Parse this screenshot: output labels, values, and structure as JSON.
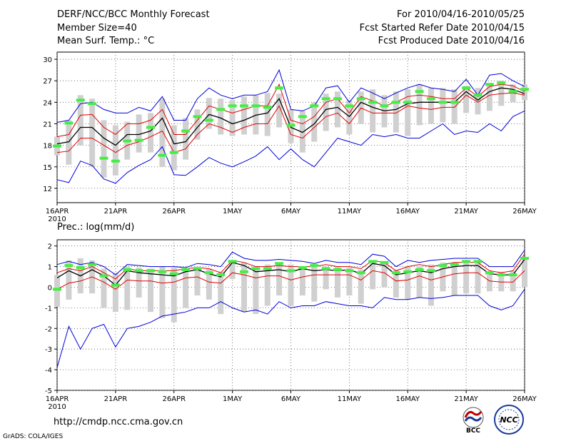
{
  "header": {
    "title": "DERF/NCC/BCC Monthly Forecast",
    "member_size": "Member Size=40",
    "var1_label": "Mean Surf. Temp.: °C",
    "period": "For 2010/04/16-2010/05/25",
    "refer_date": "Fcst Started Refer Date 2010/04/15",
    "produced_date": "Fcst Produced Date 2010/04/16"
  },
  "footer": {
    "url": "http://cmdp.ncc.cma.gov.cn",
    "credit": "GrADS: COLA/IGES"
  },
  "logos": {
    "bcc_text": "BCC",
    "ncc_text": "NCC"
  },
  "colors": {
    "envelope": "#0000d8",
    "percentile": "#e00000",
    "ensemble_mean": "#000000",
    "spread_bar": "#d0d0d0",
    "observation": "#44ee44"
  },
  "chart_data": [
    {
      "type": "line",
      "title": "Mean Surf. Temp.: °C",
      "ylim": [
        10,
        31
      ],
      "yticks": [
        12,
        15,
        18,
        21,
        24,
        27,
        30
      ],
      "xlim": [
        0,
        40
      ],
      "x_ticks": [
        {
          "day": 0,
          "label": "16APR",
          "sublabel": "2010"
        },
        {
          "day": 5,
          "label": "21APR"
        },
        {
          "day": 10,
          "label": "26APR"
        },
        {
          "day": 15,
          "label": "1MAY"
        },
        {
          "day": 20,
          "label": "6MAY"
        },
        {
          "day": 25,
          "label": "11MAY"
        },
        {
          "day": 30,
          "label": "16MAY"
        },
        {
          "day": 35,
          "label": "21MAY"
        },
        {
          "day": 40,
          "label": "26MAY"
        }
      ],
      "series": [
        {
          "name": "max",
          "values": [
            21.2,
            21.5,
            23.8,
            24.0,
            23.0,
            22.5,
            22.5,
            23.3,
            22.8,
            24.8,
            21.5,
            21.5,
            24.5,
            26.0,
            25.0,
            24.5,
            25.0,
            25.0,
            25.5,
            28.5,
            23.0,
            22.8,
            23.5,
            26.0,
            26.3,
            24.0,
            26.0,
            25.3,
            24.5,
            25.3,
            26.0,
            26.5,
            26.0,
            25.8,
            25.5,
            27.2,
            25.0,
            27.8,
            28.0,
            27.0,
            26.2
          ]
        },
        {
          "name": "p75",
          "values": [
            19.2,
            19.5,
            22.2,
            22.3,
            20.5,
            19.5,
            21.0,
            21.0,
            21.5,
            23.0,
            19.5,
            19.5,
            21.5,
            23.5,
            23.0,
            22.5,
            23.0,
            23.5,
            23.5,
            26.5,
            21.5,
            21.0,
            22.0,
            24.0,
            24.5,
            22.5,
            24.8,
            24.2,
            23.5,
            24.0,
            24.8,
            25.0,
            24.8,
            24.5,
            24.5,
            26.0,
            24.8,
            26.2,
            26.5,
            26.3,
            25.5
          ]
        },
        {
          "name": "mean",
          "values": [
            18.2,
            18.5,
            20.5,
            20.5,
            19.0,
            18.0,
            19.5,
            19.5,
            20.0,
            21.8,
            18.2,
            18.5,
            20.5,
            22.3,
            21.8,
            21.0,
            21.5,
            22.2,
            22.5,
            24.5,
            20.5,
            19.8,
            21.0,
            23.0,
            23.3,
            22.0,
            24.0,
            23.3,
            22.8,
            23.0,
            23.8,
            24.0,
            24.0,
            24.0,
            24.0,
            25.5,
            24.3,
            25.5,
            26.0,
            25.8,
            25.2
          ]
        },
        {
          "name": "p25",
          "values": [
            17.0,
            17.2,
            19.0,
            19.0,
            18.0,
            17.0,
            18.0,
            18.5,
            19.2,
            20.0,
            17.0,
            17.5,
            19.5,
            21.0,
            20.5,
            19.8,
            20.5,
            21.0,
            21.0,
            23.5,
            19.5,
            19.0,
            20.5,
            22.0,
            22.5,
            21.0,
            23.2,
            22.5,
            22.5,
            22.5,
            23.5,
            23.2,
            23.0,
            23.3,
            23.3,
            25.0,
            24.0,
            25.0,
            25.2,
            25.3,
            25.0
          ]
        },
        {
          "name": "min",
          "values": [
            13.2,
            12.8,
            15.8,
            15.2,
            13.3,
            12.7,
            14.2,
            15.2,
            16.0,
            17.8,
            13.9,
            13.8,
            15.0,
            16.3,
            15.5,
            15.0,
            15.7,
            16.5,
            17.8,
            16.0,
            17.5,
            16.0,
            15.0,
            17.0,
            19.0,
            18.5,
            18.0,
            19.5,
            19.2,
            19.5,
            19.0,
            19.0,
            20.0,
            21.0,
            19.5,
            20.0,
            19.8,
            21.0,
            20.0,
            22.0,
            22.8
          ]
        },
        {
          "name": "observation",
          "values": [
            17.9,
            21.1,
            24.3,
            23.8,
            16.2,
            15.8,
            18.6,
            18.7,
            20.5,
            16.6,
            17.0,
            20.0,
            22.0,
            21.5,
            23.0,
            23.5,
            23.5,
            23.5,
            23.3,
            26.0,
            20.8,
            22.0,
            23.5,
            24.5,
            24.5,
            23.5,
            24.5,
            24.0,
            23.5,
            24.0,
            24.0,
            25.5,
            24.5,
            24.0,
            24.0,
            26.0,
            25.0,
            26.5,
            26.7,
            25.5,
            25.8
          ]
        },
        {
          "name": "spread_top",
          "values": [
            19.2,
            21.5,
            25.0,
            24.5,
            21.5,
            20.8,
            21.3,
            22.3,
            22.5,
            24.5,
            20.8,
            21.8,
            23.0,
            24.6,
            24.5,
            24.3,
            24.8,
            25.0,
            25.3,
            25.2,
            23.0,
            22.8,
            24.0,
            25.2,
            25.5,
            24.3,
            25.5,
            25.8,
            25.0,
            25.5,
            25.8,
            26.5,
            26.0,
            26.0,
            25.8,
            26.3,
            26.0,
            26.5,
            27.0,
            26.5,
            26.5
          ]
        },
        {
          "name": "spread_bottom",
          "values": [
            16.6,
            15.3,
            18.0,
            15.0,
            13.5,
            13.8,
            16.0,
            17.0,
            17.0,
            15.0,
            14.5,
            16.0,
            18.8,
            20.3,
            19.5,
            19.3,
            19.5,
            19.5,
            19.3,
            20.5,
            18.3,
            17.0,
            18.5,
            20.0,
            20.5,
            19.5,
            21.0,
            19.8,
            20.5,
            19.8,
            19.3,
            20.8,
            21.0,
            21.2,
            21.0,
            22.5,
            22.3,
            22.8,
            23.5,
            24.0,
            24.3
          ]
        }
      ]
    },
    {
      "type": "line",
      "title": "Prec.: log(mm/d)",
      "ylim": [
        -5,
        2.3
      ],
      "yticks": [
        -5,
        -4,
        -3,
        -2,
        -1,
        0,
        1,
        2
      ],
      "xlim": [
        0,
        40
      ],
      "x_ticks": [
        {
          "day": 0,
          "label": "16APR",
          "sublabel": "2010"
        },
        {
          "day": 5,
          "label": "21APR"
        },
        {
          "day": 10,
          "label": "26APR"
        },
        {
          "day": 15,
          "label": "1MAY"
        },
        {
          "day": 20,
          "label": "6MAY"
        },
        {
          "day": 25,
          "label": "11MAY"
        },
        {
          "day": 30,
          "label": "16MAY"
        },
        {
          "day": 35,
          "label": "21MAY"
        },
        {
          "day": 40,
          "label": "26MAY"
        }
      ],
      "series": [
        {
          "name": "max",
          "values": [
            1.1,
            1.25,
            1.1,
            1.2,
            1.0,
            0.6,
            1.1,
            1.05,
            1.0,
            1.0,
            1.0,
            0.95,
            1.15,
            1.1,
            1.0,
            1.7,
            1.4,
            1.3,
            1.3,
            1.35,
            1.3,
            1.25,
            1.15,
            1.3,
            1.2,
            1.2,
            1.1,
            1.6,
            1.5,
            1.0,
            1.3,
            1.2,
            1.3,
            1.35,
            1.4,
            1.4,
            1.4,
            1.0,
            1.0,
            1.0,
            1.8
          ]
        },
        {
          "name": "p75",
          "values": [
            0.7,
            0.9,
            0.8,
            1.0,
            0.7,
            0.4,
            0.9,
            0.8,
            0.8,
            0.8,
            0.8,
            0.9,
            0.95,
            0.9,
            0.7,
            1.3,
            1.2,
            1.0,
            1.0,
            1.05,
            1.0,
            1.0,
            1.0,
            1.1,
            1.0,
            1.0,
            0.9,
            1.3,
            1.2,
            0.8,
            1.0,
            1.1,
            1.0,
            1.1,
            1.2,
            1.2,
            1.2,
            0.8,
            0.7,
            0.8,
            1.6
          ]
        },
        {
          "name": "mean",
          "values": [
            0.45,
            0.8,
            0.55,
            0.85,
            0.55,
            0.1,
            0.8,
            0.7,
            0.65,
            0.6,
            0.55,
            0.75,
            0.85,
            0.65,
            0.5,
            1.2,
            1.05,
            0.75,
            0.8,
            0.85,
            0.75,
            0.9,
            0.8,
            0.85,
            0.8,
            0.85,
            0.65,
            1.15,
            1.05,
            0.6,
            0.7,
            0.8,
            0.7,
            0.9,
            1.0,
            1.05,
            1.05,
            0.65,
            0.6,
            0.6,
            1.35
          ]
        },
        {
          "name": "p25",
          "values": [
            -0.1,
            0.2,
            0.3,
            0.5,
            0.25,
            -0.1,
            0.35,
            0.3,
            0.3,
            0.2,
            0.25,
            0.45,
            0.5,
            0.25,
            0.2,
            0.7,
            0.6,
            0.45,
            0.55,
            0.55,
            0.35,
            0.5,
            0.6,
            0.6,
            0.6,
            0.6,
            0.35,
            0.8,
            0.7,
            0.3,
            0.35,
            0.55,
            0.35,
            0.5,
            0.65,
            0.7,
            0.7,
            0.3,
            0.25,
            0.25,
            0.8
          ]
        },
        {
          "name": "min",
          "values": [
            -3.9,
            -1.9,
            -3.0,
            -2.0,
            -1.8,
            -2.9,
            -2.0,
            -1.9,
            -1.7,
            -1.4,
            -1.3,
            -1.2,
            -1.0,
            -1.0,
            -0.7,
            -1.0,
            -1.2,
            -1.1,
            -1.3,
            -0.7,
            -1.0,
            -0.9,
            -0.9,
            -0.7,
            -0.8,
            -0.9,
            -0.9,
            -1.0,
            -0.5,
            -0.6,
            -0.6,
            -0.5,
            -0.55,
            -0.5,
            -0.4,
            -0.4,
            -0.4,
            -0.9,
            -1.1,
            -0.9,
            -0.1
          ]
        },
        {
          "name": "observation",
          "values": [
            -0.1,
            1.05,
            0.95,
            1.1,
            0.55,
            0.1,
            0.85,
            0.8,
            0.8,
            0.75,
            0.65,
            0.85,
            0.9,
            0.7,
            0.6,
            1.25,
            0.75,
            0.9,
            0.9,
            1.15,
            0.8,
            0.95,
            1.05,
            0.9,
            0.85,
            0.8,
            0.7,
            1.25,
            1.2,
            0.7,
            0.75,
            0.85,
            0.8,
            1.05,
            1.1,
            1.25,
            1.25,
            0.7,
            0.6,
            0.6,
            1.4
          ]
        },
        {
          "name": "spread_top",
          "values": [
            0.6,
            1.3,
            1.4,
            1.3,
            0.9,
            0.7,
            1.0,
            0.95,
            0.9,
            1.0,
            0.95,
            0.9,
            1.0,
            0.9,
            0.75,
            1.3,
            1.2,
            1.0,
            1.1,
            1.15,
            1.1,
            1.0,
            1.0,
            1.0,
            1.0,
            0.95,
            0.85,
            1.3,
            1.2,
            0.85,
            1.0,
            1.0,
            1.1,
            1.2,
            1.2,
            1.2,
            1.2,
            0.75,
            0.75,
            0.8,
            1.4
          ]
        },
        {
          "name": "spread_bottom",
          "values": [
            -0.95,
            -0.6,
            -0.3,
            -0.3,
            -1.0,
            -1.2,
            -1.1,
            -0.5,
            -1.2,
            -1.5,
            -1.7,
            -1.0,
            -0.4,
            -0.6,
            -1.3,
            0.4,
            -1.2,
            -1.3,
            -0.9,
            -0.4,
            -0.9,
            -0.4,
            -0.7,
            -0.1,
            -0.5,
            -0.4,
            -0.8,
            -0.1,
            0.0,
            -0.5,
            -0.6,
            -0.5,
            -0.9,
            -0.2,
            -0.4,
            -0.3,
            -0.3,
            -0.2,
            -0.2,
            -0.2,
            0.0
          ]
        }
      ]
    }
  ]
}
